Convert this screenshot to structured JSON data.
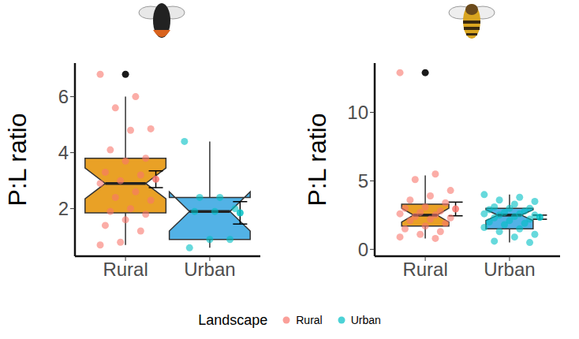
{
  "chart_data": [
    {
      "type": "box",
      "y_label": "P:L ratio",
      "categories": [
        "Rural",
        "Urban"
      ],
      "ylim": [
        0.3,
        7.2
      ],
      "yticks": [
        2,
        4,
        6
      ],
      "box_colors": [
        "#e9a126",
        "#52b2e6"
      ],
      "point_colors": [
        "#f8766d",
        "#00bfc4"
      ],
      "boxes": [
        {
          "whisker_low": 0.7,
          "q1": 1.85,
          "median": 2.9,
          "q3": 3.8,
          "whisker_high": 6.0,
          "notch": [
            2.35,
            3.45
          ],
          "outliers": [
            6.8
          ]
        },
        {
          "whisker_low": 0.6,
          "q1": 0.9,
          "median": 1.9,
          "q3": 2.4,
          "whisker_high": 4.4,
          "notch": [
            1.2,
            2.6
          ],
          "outliers": []
        }
      ],
      "points": [
        [
          6.8,
          6.0,
          5.6,
          4.85,
          4.8,
          4.1,
          3.8,
          3.7,
          3.3,
          3.2,
          3.0,
          2.9,
          2.6,
          2.4,
          2.3,
          2.0,
          1.9,
          1.8,
          1.6,
          1.4,
          1.2,
          0.8,
          0.7
        ],
        [
          4.4,
          2.4,
          2.4,
          2.0,
          1.9,
          1.9,
          0.9,
          0.9,
          0.6
        ]
      ],
      "means": [
        3.05,
        1.85
      ],
      "errors": [
        [
          2.75,
          3.35
        ],
        [
          1.45,
          2.25
        ]
      ]
    },
    {
      "type": "box",
      "y_label": "P:L ratio",
      "categories": [
        "Rural",
        "Urban"
      ],
      "ylim": [
        -0.5,
        13.6
      ],
      "yticks": [
        0,
        5,
        10
      ],
      "box_colors": [
        "#e9a126",
        "#52b2e6"
      ],
      "point_colors": [
        "#f8766d",
        "#00bfc4"
      ],
      "boxes": [
        {
          "whisker_low": 0.8,
          "q1": 1.7,
          "median": 2.5,
          "q3": 3.3,
          "whisker_high": 5.4,
          "notch": [
            2.0,
            3.0
          ],
          "outliers": [
            12.9
          ]
        },
        {
          "whisker_low": 0.5,
          "q1": 1.5,
          "median": 2.5,
          "q3": 3.0,
          "whisker_high": 4.0,
          "notch": [
            2.1,
            2.9
          ],
          "outliers": []
        }
      ],
      "points": [
        [
          12.9,
          5.5,
          5.1,
          4.3,
          3.9,
          3.6,
          3.4,
          3.1,
          3.0,
          2.8,
          2.7,
          2.6,
          2.5,
          2.4,
          2.3,
          2.2,
          2.1,
          1.9,
          1.7,
          1.5,
          1.3,
          1.1,
          0.9,
          0.8
        ],
        [
          4.0,
          3.8,
          3.6,
          3.5,
          3.3,
          3.1,
          3.0,
          3.0,
          2.9,
          2.8,
          2.7,
          2.6,
          2.6,
          2.5,
          2.5,
          2.4,
          2.3,
          2.2,
          2.1,
          2.0,
          1.9,
          1.8,
          1.6,
          1.5,
          1.3,
          1.1,
          0.9,
          0.6,
          0.5
        ]
      ],
      "means": [
        2.95,
        2.35
      ],
      "errors": [
        [
          2.45,
          3.45
        ],
        [
          2.2,
          2.5
        ]
      ]
    }
  ],
  "legend": "bottom",
  "legend_title": "Landscape",
  "legend_entries": [
    {
      "name": "Rural",
      "color": "#f8766d"
    },
    {
      "name": "Urban",
      "color": "#00bfc4"
    }
  ]
}
